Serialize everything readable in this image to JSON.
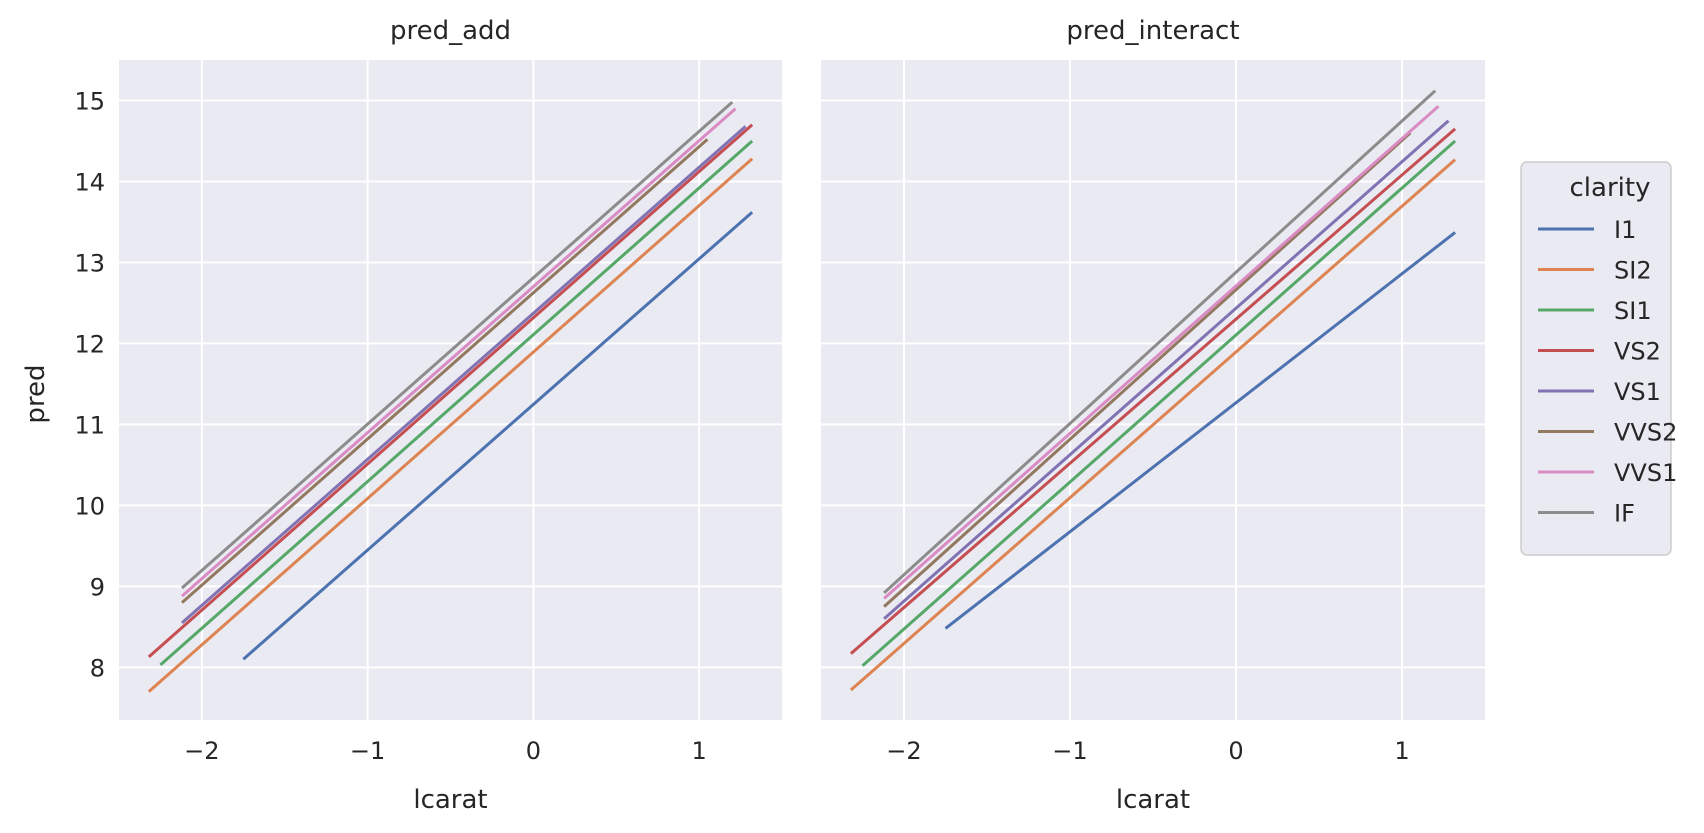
{
  "chart_data": {
    "type": "line",
    "xlabel": "lcarat",
    "ylabel": "pred",
    "xlim": [
      -2.5,
      1.5
    ],
    "ylim": [
      7.35,
      15.5
    ],
    "xticks": [
      -2,
      -1,
      0,
      1
    ],
    "xtick_labels": [
      "−2",
      "−1",
      "0",
      "1"
    ],
    "yticks": [
      8,
      9,
      10,
      11,
      12,
      13,
      14,
      15
    ],
    "ytick_labels": [
      "8",
      "9",
      "10",
      "11",
      "12",
      "13",
      "14",
      "15"
    ],
    "grid": true,
    "legend": {
      "title": "clarity",
      "placement": "right",
      "entries": [
        "I1",
        "SI2",
        "SI1",
        "VS2",
        "VS1",
        "VVS2",
        "VVS1",
        "IF"
      ]
    },
    "colors": {
      "I1": "#4c72b0",
      "SI2": "#dd8452",
      "SI1": "#55a868",
      "VS2": "#c44e52",
      "VS1": "#8172b3",
      "VVS2": "#937860",
      "VVS1": "#da8bc3",
      "IF": "#8c8c8c"
    },
    "panels": [
      {
        "title": "pred_add",
        "series": [
          {
            "name": "I1",
            "x": [
              -1.75,
              1.32
            ],
            "y": [
              8.1,
              13.62
            ]
          },
          {
            "name": "SI2",
            "x": [
              -2.32,
              1.32
            ],
            "y": [
              7.7,
              14.28
            ]
          },
          {
            "name": "SI1",
            "x": [
              -2.25,
              1.32
            ],
            "y": [
              8.03,
              14.5
            ]
          },
          {
            "name": "VS2",
            "x": [
              -2.32,
              1.32
            ],
            "y": [
              8.13,
              14.7
            ]
          },
          {
            "name": "VS1",
            "x": [
              -2.12,
              1.28
            ],
            "y": [
              8.55,
              14.68
            ]
          },
          {
            "name": "VVS2",
            "x": [
              -2.12,
              1.05
            ],
            "y": [
              8.8,
              14.52
            ]
          },
          {
            "name": "VVS1",
            "x": [
              -2.12,
              1.22
            ],
            "y": [
              8.88,
              14.9
            ]
          },
          {
            "name": "IF",
            "x": [
              -2.12,
              1.2
            ],
            "y": [
              8.98,
              14.98
            ]
          }
        ]
      },
      {
        "title": "pred_interact",
        "series": [
          {
            "name": "I1",
            "x": [
              -1.75,
              1.32
            ],
            "y": [
              8.48,
              13.37
            ]
          },
          {
            "name": "SI2",
            "x": [
              -2.32,
              1.32
            ],
            "y": [
              7.72,
              14.27
            ]
          },
          {
            "name": "SI1",
            "x": [
              -2.25,
              1.32
            ],
            "y": [
              8.02,
              14.5
            ]
          },
          {
            "name": "VS2",
            "x": [
              -2.32,
              1.32
            ],
            "y": [
              8.17,
              14.65
            ]
          },
          {
            "name": "VS1",
            "x": [
              -2.12,
              1.28
            ],
            "y": [
              8.6,
              14.75
            ]
          },
          {
            "name": "VVS2",
            "x": [
              -2.12,
              1.05
            ],
            "y": [
              8.75,
              14.6
            ]
          },
          {
            "name": "VVS1",
            "x": [
              -2.12,
              1.22
            ],
            "y": [
              8.85,
              14.93
            ]
          },
          {
            "name": "IF",
            "x": [
              -2.12,
              1.2
            ],
            "y": [
              8.92,
              15.12
            ]
          }
        ]
      }
    ]
  }
}
